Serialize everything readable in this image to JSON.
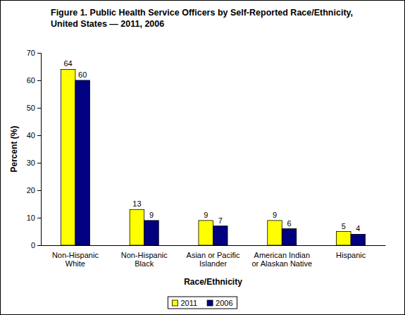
{
  "chart_data": {
    "type": "bar",
    "title": [
      "Figure 1. Public Health Service Officers by Self-Reported Race/Ethnicity,",
      "United States — 2011, 2006"
    ],
    "x_label": "Race/Ethnicity",
    "y_label": "Percent (%)",
    "categories": [
      "Non-Hispanic White",
      "Non-Hispanic Black",
      "Asian or Pacific Islander",
      "American Indian or Alaskan Native",
      "Hispanic"
    ],
    "series": [
      {
        "name": "2011",
        "color": "#ffff00",
        "values": [
          64,
          13,
          9,
          9,
          5
        ]
      },
      {
        "name": "2006",
        "color": "#000080",
        "values": [
          60,
          9,
          7,
          6,
          4
        ]
      }
    ],
    "ylim": [
      0,
      70
    ],
    "yticks": [
      0,
      10,
      20,
      30,
      40,
      50,
      60,
      70
    ],
    "grid": false,
    "legend": "bottom",
    "data_labels": true
  }
}
